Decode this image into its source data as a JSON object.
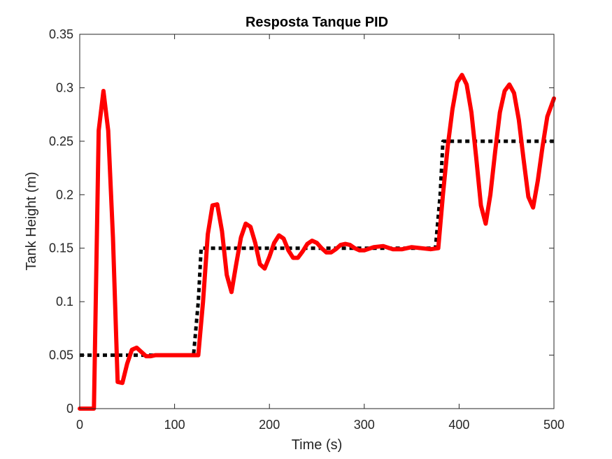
{
  "chart_data": {
    "type": "line",
    "title": "Resposta Tanque PID",
    "xlabel": "Time (s)",
    "ylabel": "Tank Height (m)",
    "xlim": [
      0,
      500
    ],
    "ylim": [
      0,
      0.35
    ],
    "xticks": [
      "0",
      "100",
      "200",
      "300",
      "400",
      "500"
    ],
    "yticks": [
      "0",
      "0.05",
      "0.1",
      "0.15",
      "0.2",
      "0.25",
      "0.3",
      "0.35"
    ],
    "xtick_values": [
      0,
      100,
      200,
      300,
      400,
      500
    ],
    "ytick_values": [
      0,
      0.05,
      0.1,
      0.15,
      0.2,
      0.25,
      0.3,
      0.35
    ],
    "grid": false,
    "series": [
      {
        "style": "dotted",
        "color": "#000000",
        "x": [
          0,
          120,
          125,
          128,
          375,
          380,
          383,
          500
        ],
        "y": [
          0.05,
          0.05,
          0.1,
          0.15,
          0.15,
          0.2,
          0.25,
          0.25
        ]
      },
      {
        "style": "solid",
        "color": "#ff0000",
        "x": [
          0,
          15,
          20,
          25,
          30,
          35,
          40,
          45,
          50,
          55,
          60,
          65,
          70,
          75,
          80,
          90,
          100,
          110,
          120,
          125,
          130,
          135,
          140,
          145,
          150,
          155,
          160,
          165,
          170,
          175,
          180,
          185,
          190,
          195,
          200,
          205,
          210,
          215,
          220,
          225,
          230,
          235,
          240,
          245,
          250,
          255,
          260,
          265,
          270,
          275,
          280,
          285,
          290,
          295,
          300,
          310,
          320,
          330,
          340,
          350,
          360,
          370,
          378,
          383,
          388,
          393,
          398,
          403,
          408,
          413,
          418,
          423,
          428,
          433,
          438,
          443,
          448,
          453,
          458,
          463,
          468,
          473,
          478,
          483,
          488,
          493,
          500
        ],
        "y": [
          0,
          0,
          0.26,
          0.297,
          0.26,
          0.16,
          0.025,
          0.024,
          0.042,
          0.055,
          0.057,
          0.053,
          0.049,
          0.049,
          0.05,
          0.05,
          0.05,
          0.05,
          0.05,
          0.05,
          0.1,
          0.163,
          0.19,
          0.191,
          0.166,
          0.125,
          0.109,
          0.135,
          0.16,
          0.173,
          0.17,
          0.155,
          0.135,
          0.131,
          0.142,
          0.155,
          0.162,
          0.159,
          0.148,
          0.141,
          0.141,
          0.147,
          0.154,
          0.157,
          0.155,
          0.15,
          0.146,
          0.146,
          0.149,
          0.153,
          0.154,
          0.153,
          0.15,
          0.148,
          0.148,
          0.151,
          0.152,
          0.149,
          0.149,
          0.151,
          0.15,
          0.149,
          0.15,
          0.2,
          0.245,
          0.28,
          0.305,
          0.312,
          0.303,
          0.277,
          0.235,
          0.19,
          0.173,
          0.2,
          0.24,
          0.277,
          0.297,
          0.303,
          0.295,
          0.27,
          0.233,
          0.198,
          0.188,
          0.213,
          0.245,
          0.273,
          0.29
        ]
      }
    ]
  }
}
